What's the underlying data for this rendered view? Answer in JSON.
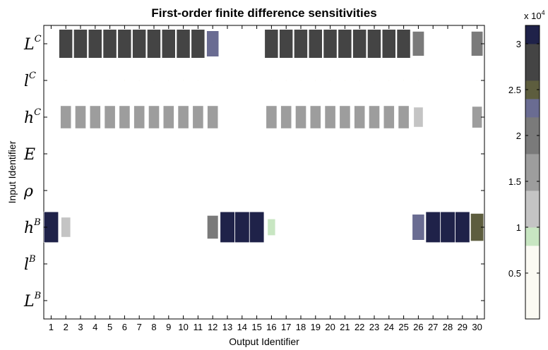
{
  "chart_data": {
    "type": "heatmap",
    "title": "First-order finite difference sensitivities",
    "xlabel": "Output Identifier",
    "ylabel": "Input Identifier",
    "x_ticks": [
      "1",
      "2",
      "3",
      "4",
      "5",
      "6",
      "7",
      "8",
      "9",
      "10",
      "11",
      "12",
      "13",
      "14",
      "15",
      "16",
      "17",
      "18",
      "19",
      "20",
      "21",
      "22",
      "23",
      "24",
      "25",
      "26",
      "27",
      "28",
      "29",
      "30"
    ],
    "y_ticks": [
      {
        "base": "L",
        "sup": "C"
      },
      {
        "base": "l",
        "sup": "C"
      },
      {
        "base": "h",
        "sup": "C"
      },
      {
        "base": "E",
        "sup": ""
      },
      {
        "base": "ρ",
        "sup": ""
      },
      {
        "base": "h",
        "sup": "B"
      },
      {
        "base": "l",
        "sup": "B"
      },
      {
        "base": "L",
        "sup": "B"
      }
    ],
    "colorbar": {
      "range": [
        0,
        32000
      ],
      "multiplier_label": "x 10",
      "multiplier_exp": "4",
      "ticks": [
        {
          "value": 5000,
          "label": "0.5"
        },
        {
          "value": 10000,
          "label": "1"
        },
        {
          "value": 15000,
          "label": "1.5"
        },
        {
          "value": 20000,
          "label": "2"
        },
        {
          "value": 25000,
          "label": "2.5"
        },
        {
          "value": 30000,
          "label": "3"
        }
      ],
      "colors": [
        "#fbfaf3",
        "#fbfaf3",
        "#fbfaf3",
        "#fbfaf3",
        "#c8e6c2",
        "#c4c4c4",
        "#c4c4c4",
        "#9d9d9d",
        "#9d9d9d",
        "#7a7a7a",
        "#7a7a7a",
        "#6a6c92",
        "#5d5d3e",
        "#444444",
        "#444444",
        "#1f2249"
      ]
    },
    "values": {
      "L^C": [
        0,
        27000,
        27000,
        27000,
        27000,
        27000,
        27000,
        27000,
        27000,
        27000,
        27000,
        22000,
        0,
        0,
        0,
        27000,
        27000,
        27000,
        27000,
        27000,
        27000,
        27000,
        27000,
        27000,
        27000,
        20000,
        0,
        0,
        0,
        20000
      ],
      "l^C": [
        0,
        100,
        100,
        100,
        100,
        100,
        100,
        100,
        100,
        100,
        100,
        100,
        0,
        0,
        0,
        100,
        100,
        100,
        100,
        100,
        100,
        100,
        100,
        100,
        100,
        100,
        0,
        0,
        0,
        100
      ],
      "h^C": [
        0,
        17000,
        17000,
        17000,
        17000,
        17000,
        17000,
        17000,
        17000,
        17000,
        17000,
        17000,
        0,
        0,
        0,
        17000,
        17000,
        17000,
        17000,
        17000,
        17000,
        17000,
        17000,
        17000,
        17000,
        13000,
        0,
        0,
        0,
        15000
      ],
      "E": [
        0,
        0,
        0,
        0,
        0,
        0,
        0,
        0,
        0,
        0,
        0,
        0,
        0,
        0,
        0,
        0,
        0,
        0,
        0,
        0,
        0,
        0,
        0,
        0,
        0,
        0,
        0,
        0,
        0,
        0
      ],
      "rho": [
        0,
        0,
        0,
        0,
        0,
        0,
        0,
        0,
        0,
        0,
        0,
        0,
        0,
        0,
        0,
        0,
        0,
        0,
        0,
        0,
        0,
        0,
        0,
        0,
        0,
        0,
        0,
        0,
        0,
        0
      ],
      "h^B": [
        31000,
        13000,
        0,
        0,
        0,
        0,
        0,
        0,
        0,
        0,
        0,
        18000,
        31000,
        31000,
        31000,
        9000,
        0,
        0,
        0,
        0,
        0,
        0,
        0,
        0,
        0,
        22000,
        31000,
        31000,
        31000,
        25000
      ],
      "l^B": [
        0,
        0,
        0,
        0,
        0,
        0,
        0,
        0,
        0,
        0,
        0,
        0,
        0,
        0,
        0,
        0,
        0,
        0,
        0,
        0,
        0,
        0,
        0,
        0,
        0,
        0,
        0,
        0,
        0,
        0
      ],
      "L^B": [
        0,
        0,
        0,
        0,
        0,
        0,
        0,
        0,
        0,
        0,
        0,
        0,
        0,
        0,
        0,
        0,
        0,
        0,
        0,
        0,
        0,
        0,
        0,
        0,
        0,
        0,
        0,
        0,
        0,
        0
      ]
    },
    "value_keys": [
      "L^C",
      "l^C",
      "h^C",
      "E",
      "rho",
      "h^B",
      "l^B",
      "L^B"
    ],
    "grid": false,
    "legend": "colorbar right"
  }
}
